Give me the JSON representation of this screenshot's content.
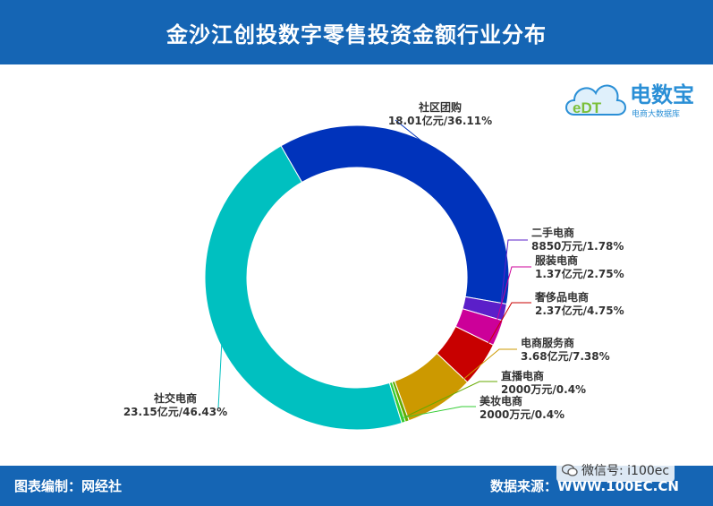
{
  "header": {
    "title": "金沙江创投数字零售投资金额行业分布"
  },
  "logo": {
    "name": "电数宝",
    "sub": "电商大数据库",
    "mark": "eDT"
  },
  "footer": {
    "credit": "图表编制：网经社",
    "source": "数据来源：WWW.100EC.CN"
  },
  "watermark": {
    "text": "微信号: i100ec",
    "icon": "wechat-icon"
  },
  "chart_data": {
    "type": "pie",
    "variant": "donut",
    "title": "金沙江创投数字零售投资金额行业分布",
    "unit": "%",
    "slices": [
      {
        "name": "社区团购",
        "amount": "18.01亿元",
        "value": 36.11,
        "pct_label": "36.11%",
        "color": "#0033bb"
      },
      {
        "name": "二手电商",
        "amount": "8850万元",
        "value": 1.78,
        "pct_label": "1.78%",
        "color": "#5b1fc9"
      },
      {
        "name": "服装电商",
        "amount": "1.37亿元",
        "value": 2.75,
        "pct_label": "2.75%",
        "color": "#cc0099"
      },
      {
        "name": "奢侈品电商",
        "amount": "2.37亿元",
        "value": 4.75,
        "pct_label": "4.75%",
        "color": "#c80000"
      },
      {
        "name": "电商服务商",
        "amount": "3.68亿元",
        "value": 7.38,
        "pct_label": "7.38%",
        "color": "#cc9900"
      },
      {
        "name": "直播电商",
        "amount": "2000万元",
        "value": 0.4,
        "pct_label": "0.4%",
        "color": "#66aa00"
      },
      {
        "name": "美妆电商",
        "amount": "2000万元",
        "value": 0.4,
        "pct_label": "0.4%",
        "color": "#33cc33"
      },
      {
        "name": "社交电商",
        "amount": "23.15亿元",
        "value": 46.43,
        "pct_label": "46.43%",
        "color": "#00c0c0"
      }
    ]
  }
}
